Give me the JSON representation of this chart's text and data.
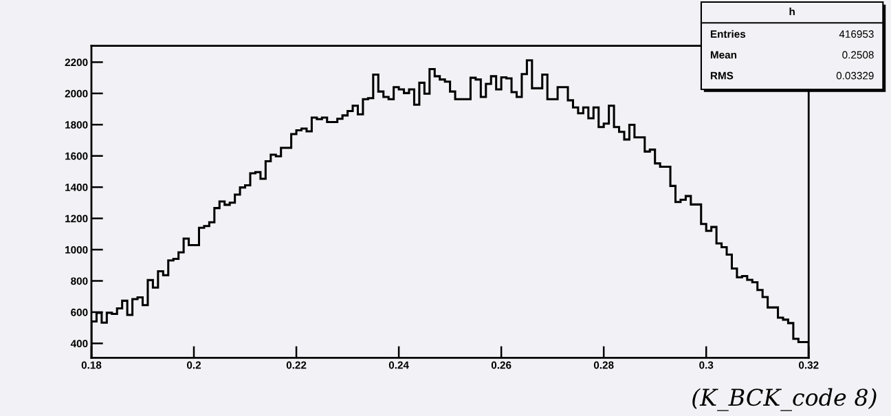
{
  "chart_data": {
    "type": "histogram",
    "bins": [
      0.18,
      0.181,
      0.182,
      0.183,
      0.184,
      0.185,
      0.186,
      0.187,
      0.188,
      0.189,
      0.19,
      0.191,
      0.192,
      0.193,
      0.194,
      0.195,
      0.196,
      0.197,
      0.198,
      0.199,
      0.2,
      0.201,
      0.202,
      0.203,
      0.204,
      0.205,
      0.206,
      0.207,
      0.208,
      0.209,
      0.21,
      0.211,
      0.212,
      0.213,
      0.214,
      0.215,
      0.216,
      0.217,
      0.218,
      0.219,
      0.22,
      0.221,
      0.222,
      0.223,
      0.224,
      0.225,
      0.226,
      0.227,
      0.228,
      0.229,
      0.23,
      0.231,
      0.232,
      0.233,
      0.234,
      0.235,
      0.236,
      0.237,
      0.238,
      0.239,
      0.24,
      0.241,
      0.242,
      0.243,
      0.244,
      0.245,
      0.246,
      0.247,
      0.248,
      0.249,
      0.25,
      0.251,
      0.252,
      0.253,
      0.254,
      0.255,
      0.256,
      0.257,
      0.258,
      0.259,
      0.26,
      0.261,
      0.262,
      0.263,
      0.264,
      0.265,
      0.266,
      0.267,
      0.268,
      0.269,
      0.27,
      0.271,
      0.272,
      0.273,
      0.274,
      0.275,
      0.276,
      0.277,
      0.278,
      0.279,
      0.28,
      0.281,
      0.282,
      0.283,
      0.284,
      0.285,
      0.286,
      0.287,
      0.288,
      0.289,
      0.29,
      0.291,
      0.292,
      0.293,
      0.294,
      0.295,
      0.296,
      0.297,
      0.298,
      0.299,
      0.3,
      0.301,
      0.302,
      0.303,
      0.304,
      0.305,
      0.306,
      0.307,
      0.308,
      0.309,
      0.31,
      0.311,
      0.312,
      0.313,
      0.314,
      0.315,
      0.316,
      0.317,
      0.318,
      0.319,
      0.32
    ],
    "values": [
      540,
      596,
      533,
      596,
      589,
      624,
      673,
      582,
      683,
      694,
      645,
      805,
      757,
      862,
      836,
      931,
      941,
      983,
      1071,
      1029,
      1029,
      1140,
      1151,
      1175,
      1266,
      1308,
      1287,
      1301,
      1352,
      1398,
      1412,
      1489,
      1496,
      1454,
      1566,
      1608,
      1598,
      1652,
      1652,
      1740,
      1764,
      1775,
      1757,
      1845,
      1835,
      1845,
      1817,
      1817,
      1838,
      1859,
      1887,
      1921,
      1866,
      1963,
      1970,
      2120,
      2012,
      1977,
      1963,
      2040,
      2026,
      2002,
      2026,
      1928,
      2068,
      1998,
      2156,
      2110,
      2089,
      2075,
      2012,
      1963,
      1963,
      1963,
      2100,
      2089,
      1977,
      2061,
      2110,
      2026,
      2103,
      2096,
      2008,
      1977,
      2124,
      2212,
      2033,
      2033,
      2120,
      1963,
      1963,
      2040,
      2040,
      1956,
      1910,
      1873,
      1910,
      1841,
      1910,
      1785,
      1807,
      1921,
      1785,
      1754,
      1705,
      1799,
      1719,
      1719,
      1628,
      1640,
      1552,
      1531,
      1531,
      1408,
      1305,
      1319,
      1343,
      1289,
      1289,
      1164,
      1120,
      1145,
      1040,
      1016,
      968,
      879,
      823,
      831,
      807,
      791,
      742,
      697,
      630,
      630,
      565,
      552,
      530,
      429,
      408,
      408
    ],
    "color": "#000000",
    "xlim": [
      0.18,
      0.32
    ],
    "xticks": [
      0.18,
      0.2,
      0.22,
      0.24,
      0.26,
      0.28,
      0.3,
      0.32
    ],
    "ylim": [
      308,
      2305
    ],
    "yticks": [
      400,
      600,
      800,
      1000,
      1200,
      1400,
      1600,
      1800,
      2000,
      2200
    ],
    "grid": false,
    "legend": false,
    "annotations": [
      "h",
      "Entries",
      "416953",
      "Mean",
      "0.2508",
      "RMS",
      "0.03329",
      "(K_BCK_code 8)"
    ]
  }
}
